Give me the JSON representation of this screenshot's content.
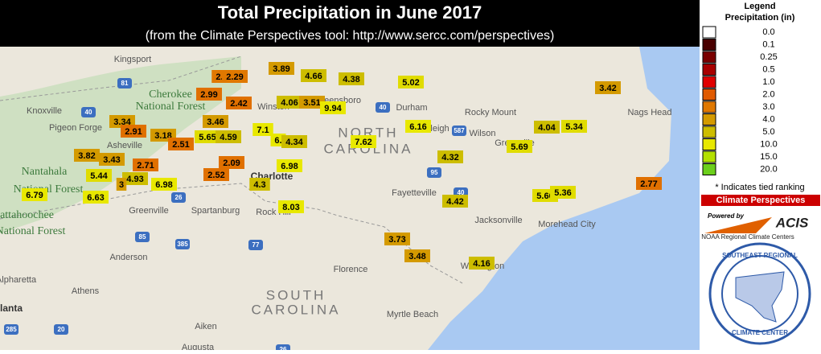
{
  "header": {
    "title": "Total Precipitation in June 2017",
    "subtitle": "(from the Climate Perspectives tool: http://www.sercc.com/perspectives)"
  },
  "legend": {
    "title": "Legend",
    "units": "Precipitation (in)",
    "items": [
      {
        "label": "0.0",
        "color": "#ffffff"
      },
      {
        "label": "0.1",
        "color": "#4a0000"
      },
      {
        "label": "0.25",
        "color": "#7a0000"
      },
      {
        "label": "0.5",
        "color": "#a80000"
      },
      {
        "label": "1.0",
        "color": "#e00000"
      },
      {
        "label": "2.0",
        "color": "#e05a00"
      },
      {
        "label": "3.0",
        "color": "#e07800"
      },
      {
        "label": "4.0",
        "color": "#d49a00"
      },
      {
        "label": "5.0",
        "color": "#cdbd00"
      },
      {
        "label": "10.0",
        "color": "#e8e800"
      },
      {
        "label": "15.0",
        "color": "#b4e000"
      },
      {
        "label": "20.0",
        "color": "#6ccf1c"
      }
    ],
    "note": "* Indicates tied ranking"
  },
  "banner": "Climate Perspectives",
  "logos": {
    "powered": "Powered by",
    "acis": "ACIS",
    "rcc": "NOAA Regional Climate Centers",
    "sercc_top": "SOUTHEAST REGIONAL",
    "sercc_bottom": "CLIMATE CENTER"
  },
  "places": [
    "Kingsport",
    "Knoxville",
    "Pigeon Forge",
    "Cherokee",
    "National Forest",
    "Asheville",
    "Nantahala",
    "National Forest",
    "hattahoochee",
    "National Forest",
    "Greenville",
    "Spartanburg",
    "Charlotte",
    "Rock Hill",
    "Anderson",
    "Athens",
    "Alpharetta",
    "tlanta",
    "Aiken",
    "Augusta",
    "Florence",
    "Myrtle Beach",
    "Fayetteville",
    "Durham",
    "Raleigh",
    "Rocky Mount",
    "Wilson",
    "Greenville",
    "Jacksonville",
    "Morehead City",
    "Nags Head",
    "Wilmington",
    "Winston",
    "Greensboro",
    "NORTH",
    "CAROLINA",
    "SOUTH",
    "CAROLINA",
    "81",
    "40",
    "26",
    "85",
    "385",
    "77",
    "20",
    "285",
    "95",
    "587",
    "40",
    "26",
    "40"
  ],
  "stations": [
    {
      "value": "2.2",
      "color": "#e07800"
    },
    {
      "value": "2.29",
      "color": "#e07800"
    },
    {
      "value": "2.99",
      "color": "#e07000"
    },
    {
      "value": "2.42",
      "color": "#e07000"
    },
    {
      "value": "3.89",
      "color": "#d49a00"
    },
    {
      "value": "4.66",
      "color": "#cdbd00"
    },
    {
      "value": "4.38",
      "color": "#cdbd00"
    },
    {
      "value": "5.02",
      "color": "#e0dc00"
    },
    {
      "value": "3.42",
      "color": "#d49a00"
    },
    {
      "value": "4.06",
      "color": "#cdbd00"
    },
    {
      "value": "3.51",
      "color": "#d49a00"
    },
    {
      "value": "9.94",
      "color": "#e8e800"
    },
    {
      "value": "3.34",
      "color": "#d49a00"
    },
    {
      "value": "2.91",
      "color": "#e07000"
    },
    {
      "value": "3.46",
      "color": "#d49a00"
    },
    {
      "value": "7.1",
      "color": "#e8e800"
    },
    {
      "value": "6.16",
      "color": "#e8e800"
    },
    {
      "value": "4.04",
      "color": "#cdbd00"
    },
    {
      "value": "5.34",
      "color": "#e0dc00"
    },
    {
      "value": "3.18",
      "color": "#d49a00"
    },
    {
      "value": "2.51",
      "color": "#e07000"
    },
    {
      "value": "5.65",
      "color": "#e0dc00"
    },
    {
      "value": "4.59",
      "color": "#cdbd00"
    },
    {
      "value": "6.",
      "color": "#e8e800"
    },
    {
      "value": "4.34",
      "color": "#cdbd00"
    },
    {
      "value": "7.62",
      "color": "#e8e800"
    },
    {
      "value": "5.69",
      "color": "#e0dc00"
    },
    {
      "value": "3.82",
      "color": "#d49a00"
    },
    {
      "value": "3.43",
      "color": "#d49a00"
    },
    {
      "value": "2.71",
      "color": "#e07000"
    },
    {
      "value": "2.09",
      "color": "#e07000"
    },
    {
      "value": "6.98",
      "color": "#e8e800"
    },
    {
      "value": "4.32",
      "color": "#cdbd00"
    },
    {
      "value": "5.44",
      "color": "#e0dc00"
    },
    {
      "value": "4.93",
      "color": "#cdbd00"
    },
    {
      "value": "3",
      "color": "#d49a00"
    },
    {
      "value": "6.98",
      "color": "#e8e800"
    },
    {
      "value": "2.52",
      "color": "#e07000"
    },
    {
      "value": "4.3",
      "color": "#cdbd00"
    },
    {
      "value": "2.77",
      "color": "#e07000"
    },
    {
      "value": "6.79",
      "color": "#e8e800"
    },
    {
      "value": "6.63",
      "color": "#e8e800"
    },
    {
      "value": "4.42",
      "color": "#cdbd00"
    },
    {
      "value": "5.66",
      "color": "#e0dc00"
    },
    {
      "value": "5.36",
      "color": "#e0dc00"
    },
    {
      "value": "8.03",
      "color": "#e8e800"
    },
    {
      "value": "3.73",
      "color": "#d49a00"
    },
    {
      "value": "3.48",
      "color": "#d49a00"
    },
    {
      "value": "4.16",
      "color": "#cdbd00"
    }
  ]
}
